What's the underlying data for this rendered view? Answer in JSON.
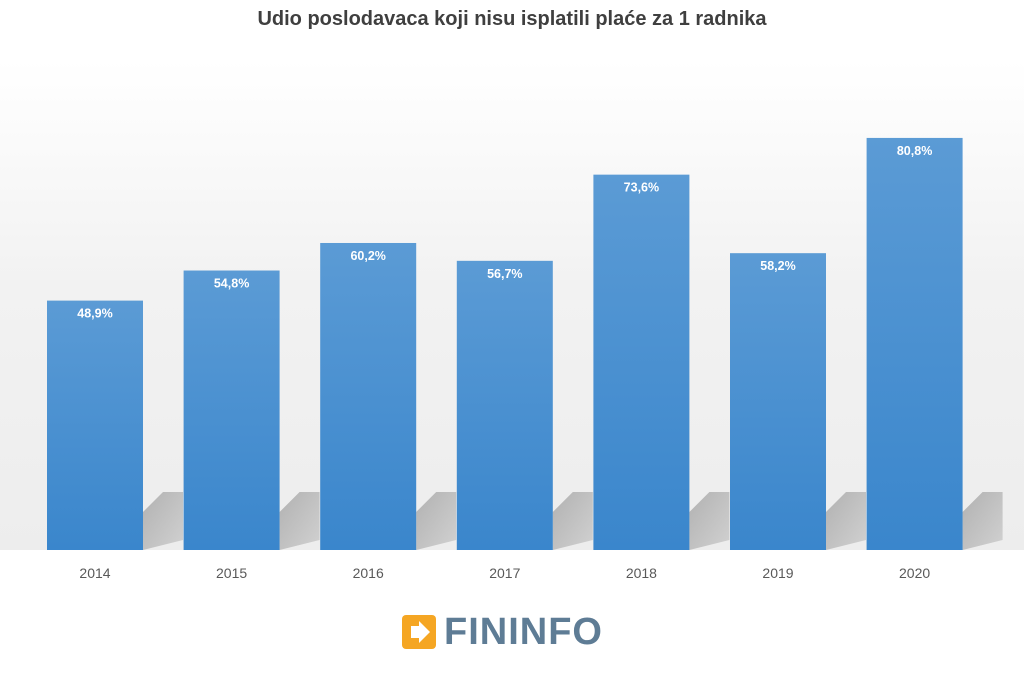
{
  "chart_data": {
    "type": "bar",
    "title": "Udio poslodavaca koji nisu isplatili plaće za 1 radnika",
    "categories": [
      "2014",
      "2015",
      "2016",
      "2017",
      "2018",
      "2019",
      "2020"
    ],
    "values": [
      48.9,
      54.8,
      60.2,
      56.7,
      73.6,
      58.2,
      80.8
    ],
    "data_labels": [
      "48,9%",
      "54,8%",
      "60,2%",
      "56,7%",
      "73,6%",
      "58,2%",
      "80,8%"
    ],
    "xlabel": "",
    "ylabel": "",
    "ylim": [
      0,
      100
    ],
    "grid": false,
    "legend": "none"
  },
  "colors": {
    "bar_top": "#5b9bd5",
    "bar_bottom": "#3a86cc",
    "title": "#3f3f3f",
    "shadow": "#a6a6a6",
    "logo_orange": "#f5a623",
    "logo_text": "#5e7c95"
  },
  "logo": {
    "text": "FININFO",
    "icon": "arrow-right-icon"
  }
}
